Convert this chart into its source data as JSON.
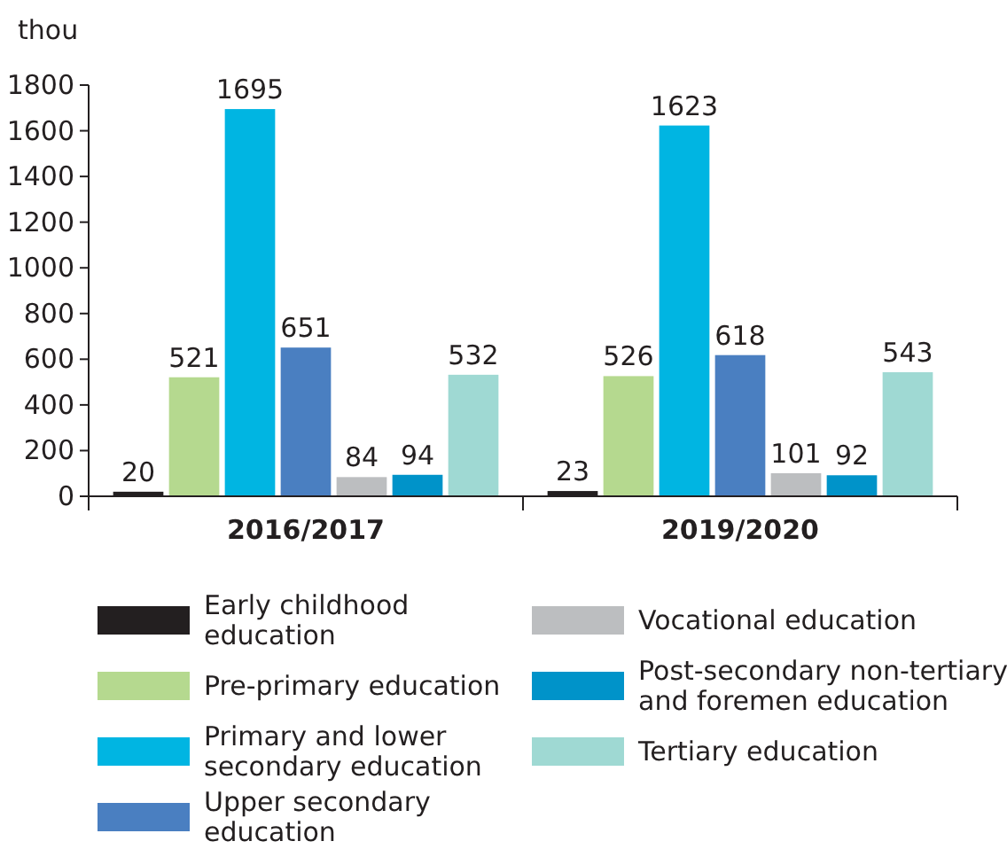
{
  "chart_data": {
    "type": "bar",
    "ylabel": "thou",
    "categories": [
      "2016/2017",
      "2019/2020"
    ],
    "series": [
      {
        "name": "Early childhood education",
        "color": "#231f20",
        "values": [
          20,
          23
        ]
      },
      {
        "name": "Pre-primary education",
        "color": "#b5d98f",
        "values": [
          521,
          526
        ]
      },
      {
        "name": "Primary and lower secondary education",
        "color": "#00b5e2",
        "values": [
          1695,
          1623
        ]
      },
      {
        "name": "Upper secondary education",
        "color": "#4a7fc1",
        "values": [
          651,
          618
        ]
      },
      {
        "name": "Vocational education",
        "color": "#bcbec0",
        "values": [
          84,
          101
        ]
      },
      {
        "name": "Post-secondary non-tertiary and foremen education",
        "color": "#0093c9",
        "values": [
          94,
          92
        ]
      },
      {
        "name": "Tertiary education",
        "color": "#9fd9d3",
        "values": [
          532,
          543
        ]
      }
    ],
    "ylim": [
      0,
      1800
    ],
    "yticks": [
      0,
      200,
      400,
      600,
      800,
      1000,
      1200,
      1400,
      1600,
      1800
    ],
    "data_labels": true,
    "legend": "bottom",
    "grid": false
  }
}
